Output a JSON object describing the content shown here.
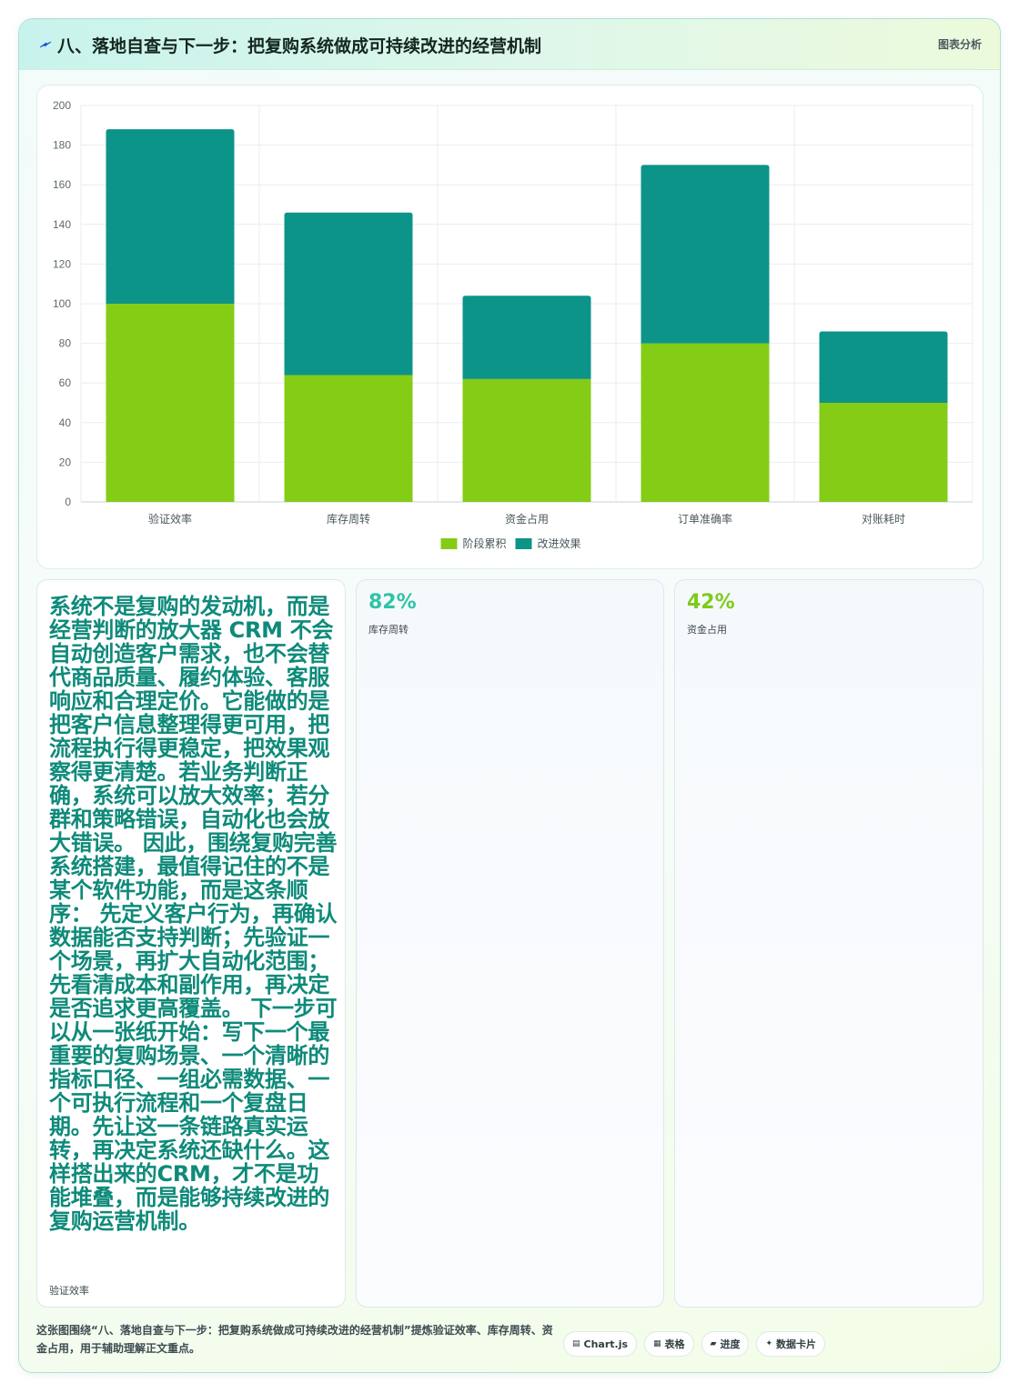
{
  "header": {
    "title": "八、落地自查与下一步：把复购系统做成可持续改进的经营机制",
    "tag": "图表分析"
  },
  "chart_data": {
    "type": "bar",
    "stacked": true,
    "categories": [
      "验证效率",
      "库存周转",
      "资金占用",
      "订单准确率",
      "对账耗时"
    ],
    "series": [
      {
        "name": "阶段累积",
        "values": [
          100,
          64,
          62,
          80,
          50
        ],
        "color": "#84cc16"
      },
      {
        "name": "改进效果",
        "values": [
          88,
          82,
          42,
          90,
          36
        ],
        "color": "#0d9488"
      }
    ],
    "ylim": [
      0,
      200
    ],
    "yticks": [
      0,
      20,
      40,
      60,
      80,
      100,
      120,
      140,
      160,
      180,
      200
    ],
    "legend": "bottom",
    "grid": true
  },
  "cards": {
    "main_text": "系统不是复购的发动机，而是经营判断的放大器 CRM 不会自动创造客户需求，也不会替代商品质量、履约体验、客服响应和合理定价。它能做的是把客户信息整理得更可用，把流程执行得更稳定，把效果观察得更清楚。若业务判断正确，系统可以放大效率；若分群和策略错误，自动化也会放大错误。 因此，围绕复购完善系统搭建，最值得记住的不是某个软件功能，而是这条顺序： 先定义客户行为，再确认数据能否支持判断；先验证一个场景，再扩大自动化范围；先看清成本和副作用，再决定是否追求更高覆盖。 下一步可以从一张纸开始：写下一个最重要的复购场景、一个清晰的指标口径、一组必需数据、一个可执行流程和一个复盘日期。先让这一条链路真实运转，再决定系统还缺什么。这样搭出来的CRM，才不是功能堆叠，而是能够持续改进的复购运营机制。",
    "main_label": "验证效率",
    "stat1_value": "82%",
    "stat1_label": "库存周转",
    "stat2_value": "42%",
    "stat2_label": "资金占用"
  },
  "footer": {
    "text": "这张图围绕“八、落地自查与下一步：把复购系统做成可持续改进的经营机制”提炼验证效率、库存周转、资金占用，用于辅助理解正文重点。",
    "pills": [
      {
        "icon": "▤",
        "label": "Chart.js"
      },
      {
        "icon": "▦",
        "label": "表格"
      },
      {
        "icon": "▰",
        "label": "进度"
      },
      {
        "icon": "✦",
        "label": "数据卡片"
      }
    ]
  }
}
